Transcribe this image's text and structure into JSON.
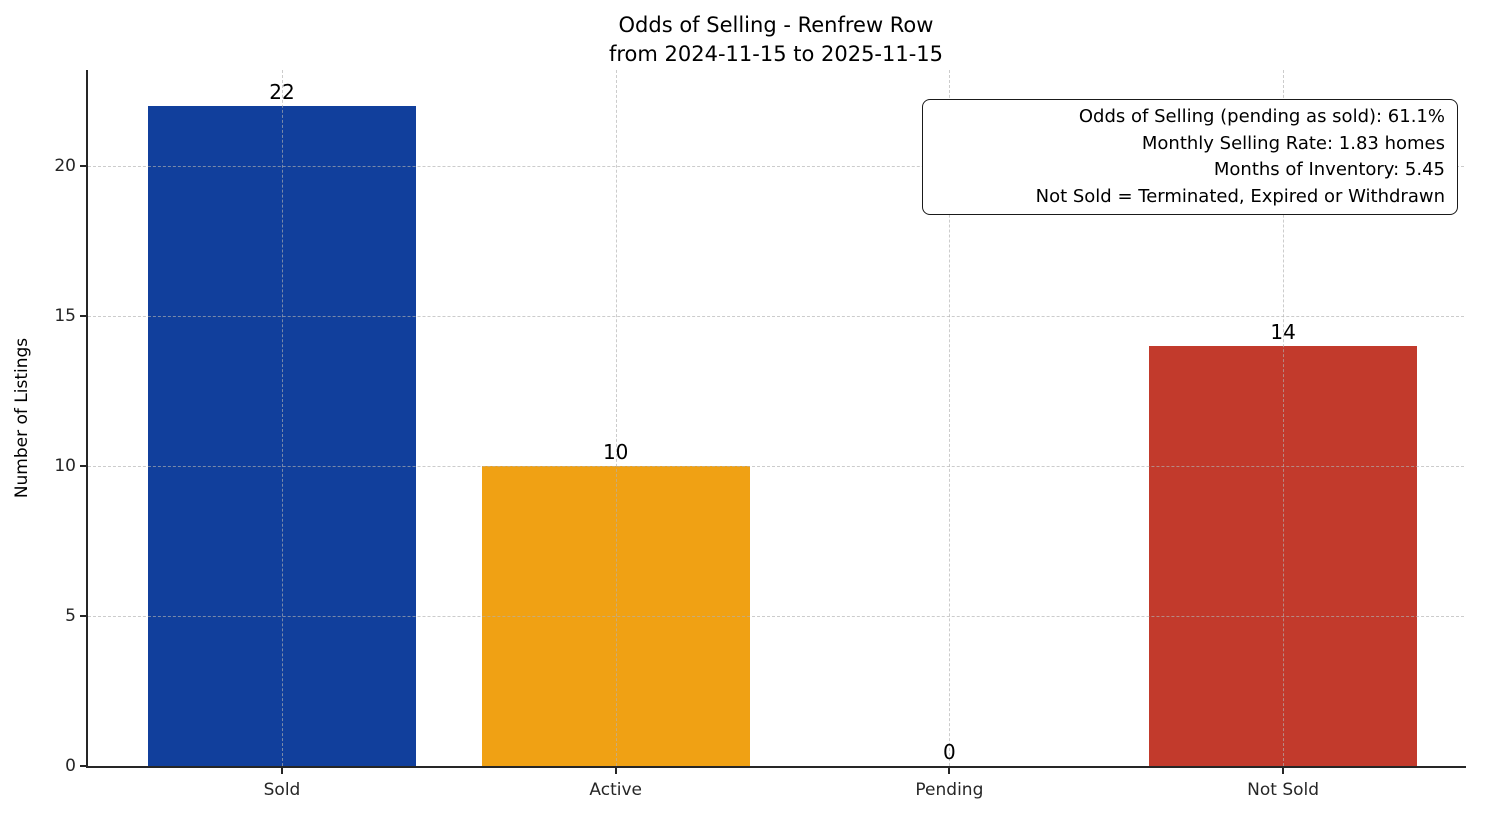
{
  "chart_data": {
    "type": "bar",
    "title": "Odds of Selling - Renfrew Row",
    "subtitle": "from 2024-11-15 to 2025-11-15",
    "ylabel": "Number of Listings",
    "categories": [
      "Sold",
      "Active",
      "Pending",
      "Not Sold"
    ],
    "values": [
      22,
      10,
      0,
      14
    ],
    "bar_value_labels": [
      "22",
      "10",
      "0",
      "14"
    ],
    "bar_colors": [
      "#113f9c",
      "#f0a114",
      null,
      "#c23a2c"
    ],
    "yticks": [
      0,
      5,
      10,
      15,
      20
    ],
    "ylim": [
      0,
      23.2
    ],
    "grid": "dashed",
    "legend": null,
    "annotation_lines": [
      "Odds of Selling (pending as sold): 61.1%",
      "Monthly Selling Rate: 1.83 homes",
      "Months of Inventory: 5.45",
      "Not Sold = Terminated, Expired or Withdrawn"
    ]
  }
}
